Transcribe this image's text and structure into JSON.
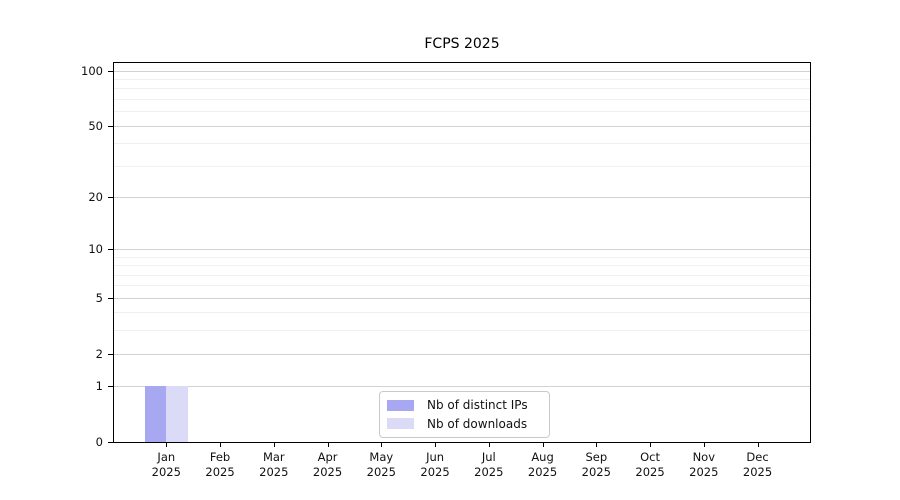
{
  "chart_data": {
    "type": "bar",
    "title": "FCPS 2025",
    "categories": [
      "Jan",
      "Feb",
      "Mar",
      "Apr",
      "May",
      "Jun",
      "Jul",
      "Aug",
      "Sep",
      "Oct",
      "Nov",
      "Dec"
    ],
    "category_year": "2025",
    "series": [
      {
        "name": "Nb of distinct IPs",
        "color": "#a8a8f2",
        "values": [
          1,
          0,
          0,
          0,
          0,
          0,
          0,
          0,
          0,
          0,
          0,
          0
        ]
      },
      {
        "name": "Nb of downloads",
        "color": "#dbdbf8",
        "values": [
          1,
          0,
          0,
          0,
          0,
          0,
          0,
          0,
          0,
          0,
          0,
          0
        ]
      }
    ],
    "xlabel": "",
    "ylabel": "",
    "yscale": "log1p",
    "ylim": [
      0,
      110
    ],
    "y_major_ticks": [
      0,
      1,
      2,
      5,
      10,
      20,
      50,
      100
    ],
    "y_minor_gridlines": [
      3,
      4,
      6,
      7,
      8,
      9,
      30,
      40,
      60,
      70,
      80,
      90
    ],
    "grid": "horizontal",
    "legend_position": "inside-bottom-center",
    "colors": {
      "major_grid": "#d2d2d2",
      "minor_grid": "#f0f0f0",
      "spine": "#000000",
      "text": "#111111",
      "legend_border": "#c9c9c9",
      "background": "#ffffff"
    }
  }
}
